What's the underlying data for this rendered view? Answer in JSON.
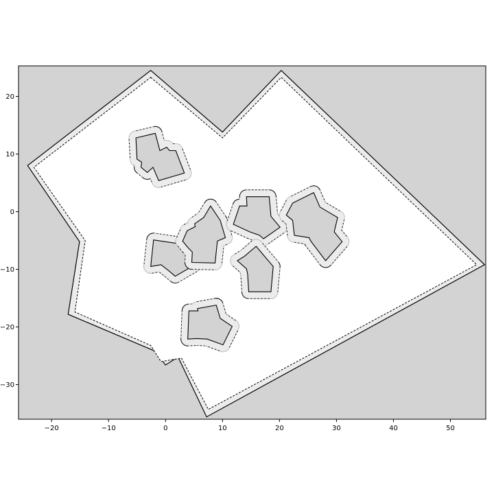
{
  "chart_data": {
    "type": "map",
    "title": "",
    "xlabel": "",
    "ylabel": "",
    "xlim": [
      -25.8,
      56.2
    ],
    "ylim": [
      -36.0,
      25.3
    ],
    "xticks": [
      -20,
      -10,
      0,
      10,
      20,
      30,
      40,
      50
    ],
    "yticks": [
      -30,
      -20,
      -10,
      0,
      10,
      20
    ],
    "grid": false,
    "legend": "none",
    "colors": {
      "blocked": "#d3d3d3",
      "free": "#ffffff",
      "margin": "#ececec",
      "edge": "#000000"
    },
    "boundary": {
      "outer": [
        [
          -2.6,
          24.5
        ],
        [
          10.0,
          13.8
        ],
        [
          20.3,
          24.5
        ],
        [
          56.0,
          -9.2
        ],
        [
          7.2,
          -35.6
        ],
        [
          2.2,
          -25.2
        ],
        [
          0.0,
          -26.6
        ],
        [
          -1.8,
          -24.2
        ],
        [
          -17.1,
          -17.8
        ],
        [
          -15.1,
          -5.2
        ],
        [
          -24.2,
          8.0
        ]
      ],
      "inner": [
        [
          -2.6,
          23.3
        ],
        [
          10.0,
          12.8
        ],
        [
          20.3,
          23.3
        ],
        [
          54.6,
          -9.2
        ],
        [
          7.5,
          -34.3
        ],
        [
          2.8,
          -25.4
        ],
        [
          -0.8,
          -26.0
        ],
        [
          -2.6,
          -23.2
        ],
        [
          -15.9,
          -17.4
        ],
        [
          -14.1,
          -5.0
        ],
        [
          -23.1,
          7.7
        ]
      ]
    },
    "obstacles": [
      {
        "polygon": [
          [
            -5.2,
            12.8
          ],
          [
            -1.8,
            13.6
          ],
          [
            -1.0,
            10.6
          ],
          [
            0.2,
            11.2
          ],
          [
            0.7,
            10.6
          ],
          [
            1.8,
            10.6
          ],
          [
            3.3,
            6.7
          ],
          [
            -1.2,
            5.4
          ],
          [
            -2.2,
            7.7
          ],
          [
            -3.2,
            6.8
          ],
          [
            -4.3,
            7.7
          ],
          [
            -4.2,
            8.6
          ],
          [
            -5.0,
            9.1
          ]
        ]
      },
      {
        "polygon": [
          [
            -2.1,
            -4.9
          ],
          [
            2.7,
            -5.6
          ],
          [
            3.3,
            -6.6
          ],
          [
            5.0,
            -9.3
          ],
          [
            1.7,
            -11.2
          ],
          [
            0.5,
            -10.2
          ],
          [
            -0.8,
            -9.2
          ],
          [
            -2.6,
            -9.5
          ]
        ]
      },
      {
        "polygon": [
          [
            6.7,
            -1.0
          ],
          [
            7.9,
            1.0
          ],
          [
            9.6,
            -1.5
          ],
          [
            10.5,
            -4.5
          ],
          [
            9.1,
            -5.1
          ],
          [
            8.7,
            -8.9
          ],
          [
            4.6,
            -8.8
          ],
          [
            4.7,
            -7.0
          ],
          [
            3.9,
            -6.2
          ],
          [
            3.0,
            -5.1
          ],
          [
            3.8,
            -3.3
          ],
          [
            5.2,
            -2.6
          ],
          [
            5.1,
            -2.1
          ]
        ]
      },
      {
        "polygon": [
          [
            14.2,
            2.6
          ],
          [
            18.2,
            2.6
          ],
          [
            18.5,
            -0.8
          ],
          [
            20.1,
            -2.7
          ],
          [
            17.2,
            -4.7
          ],
          [
            16.5,
            -4.1
          ],
          [
            14.8,
            -3.5
          ],
          [
            11.9,
            -2.2
          ],
          [
            13.0,
            1.0
          ],
          [
            14.3,
            1.0
          ]
        ]
      },
      {
        "polygon": [
          [
            14.6,
            -13.9
          ],
          [
            18.5,
            -13.9
          ],
          [
            18.9,
            -9.5
          ],
          [
            15.9,
            -6.0
          ],
          [
            13.9,
            -7.7
          ],
          [
            12.6,
            -8.5
          ],
          [
            14.2,
            -9.9
          ],
          [
            14.4,
            -10.8
          ]
        ]
      },
      {
        "polygon": [
          [
            22.3,
            1.5
          ],
          [
            26.0,
            3.3
          ],
          [
            27.1,
            0.8
          ],
          [
            30.2,
            -1.0
          ],
          [
            29.6,
            -3.5
          ],
          [
            31.0,
            -5.2
          ],
          [
            28.1,
            -8.5
          ],
          [
            25.5,
            -5.1
          ],
          [
            25.2,
            -4.5
          ],
          [
            22.6,
            -4.1
          ],
          [
            22.3,
            -1.5
          ],
          [
            21.2,
            -0.6
          ]
        ]
      },
      {
        "polygon": [
          [
            4.1,
            -17.2
          ],
          [
            5.7,
            -17.2
          ],
          [
            5.6,
            -16.8
          ],
          [
            8.9,
            -16.2
          ],
          [
            9.6,
            -18.5
          ],
          [
            11.7,
            -19.9
          ],
          [
            10.1,
            -23.1
          ],
          [
            7.3,
            -22.1
          ],
          [
            5.5,
            -22.0
          ],
          [
            3.9,
            -22.1
          ]
        ]
      }
    ]
  }
}
